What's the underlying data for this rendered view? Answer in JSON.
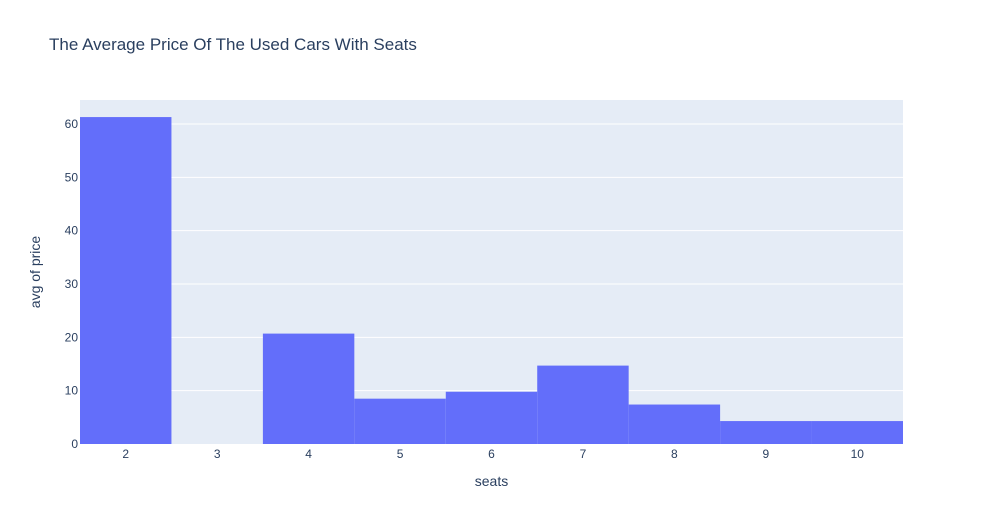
{
  "chart_data": {
    "type": "bar",
    "title": "The Average Price Of The Used Cars With Seats",
    "xlabel": "seats",
    "ylabel": "avg of price",
    "categories": [
      "2",
      "3",
      "4",
      "5",
      "6",
      "7",
      "8",
      "9",
      "10"
    ],
    "x": [
      2,
      3,
      4,
      5,
      6,
      7,
      8,
      9,
      10
    ],
    "values": [
      61.3,
      0,
      20.7,
      8.5,
      9.8,
      14.7,
      7.4,
      4.3,
      4.3
    ],
    "xlim": [
      1.5,
      10.5
    ],
    "ylim": [
      0,
      64.5
    ],
    "yticks": [
      0,
      10,
      20,
      30,
      40,
      50,
      60
    ],
    "grid": true,
    "legend": "none",
    "colors": {
      "bar": "#636efa",
      "plot_bg": "#e5ecf6",
      "grid": "#ffffff",
      "text": "#2a3f5f"
    }
  }
}
